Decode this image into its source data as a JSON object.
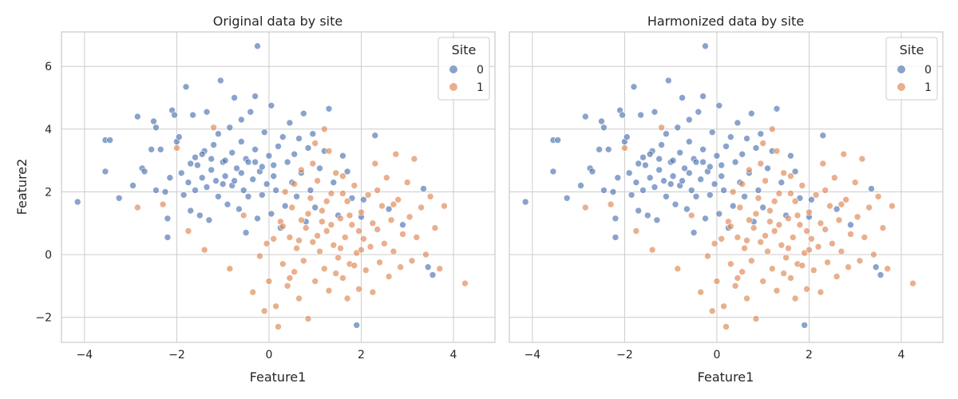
{
  "chart_data": [
    {
      "type": "scatter",
      "title": "Original data by site",
      "xlabel": "Feature1",
      "ylabel": "Feature2",
      "xlim": [
        -4.5,
        4.9
      ],
      "ylim": [
        -2.8,
        7.1
      ],
      "xticks": [
        -4,
        -2,
        0,
        2,
        4
      ],
      "yticks": [
        -2,
        0,
        2,
        4,
        6
      ],
      "xtick_labels": [
        "−4",
        "−2",
        "0",
        "2",
        "4"
      ],
      "ytick_labels": [
        "−2",
        "0",
        "2",
        "4",
        "6"
      ],
      "grid": true,
      "legend": {
        "title": "Site",
        "position": "top-right",
        "entries": [
          "0",
          "1"
        ]
      },
      "series": [
        {
          "name": "0",
          "color": "#4c72b0",
          "points": [
            [
              -4.15,
              1.68
            ],
            [
              -3.55,
              3.65
            ],
            [
              -3.45,
              3.65
            ],
            [
              -3.55,
              2.65
            ],
            [
              -3.25,
              1.8
            ],
            [
              -2.95,
              2.2
            ],
            [
              -2.85,
              4.4
            ],
            [
              -2.75,
              2.75
            ],
            [
              -2.7,
              2.65
            ],
            [
              -2.55,
              3.35
            ],
            [
              -2.5,
              4.25
            ],
            [
              -2.45,
              4.05
            ],
            [
              -2.45,
              2.05
            ],
            [
              -2.35,
              3.35
            ],
            [
              -2.25,
              2.0
            ],
            [
              -2.2,
              1.15
            ],
            [
              -2.2,
              0.55
            ],
            [
              -2.15,
              2.45
            ],
            [
              -2.1,
              4.6
            ],
            [
              -2.05,
              4.45
            ],
            [
              -2.0,
              3.6
            ],
            [
              -1.95,
              3.75
            ],
            [
              -1.9,
              2.6
            ],
            [
              -1.85,
              1.9
            ],
            [
              -1.8,
              5.35
            ],
            [
              -1.75,
              2.3
            ],
            [
              -1.7,
              1.4
            ],
            [
              -1.65,
              4.45
            ],
            [
              -1.6,
              2.05
            ],
            [
              -1.6,
              3.1
            ],
            [
              -1.55,
              2.85
            ],
            [
              -1.5,
              1.25
            ],
            [
              -1.45,
              2.45
            ],
            [
              -1.4,
              3.3
            ],
            [
              -1.35,
              2.15
            ],
            [
              -1.35,
              4.55
            ],
            [
              -1.3,
              1.1
            ],
            [
              -1.25,
              2.7
            ],
            [
              -1.2,
              3.5
            ],
            [
              -1.15,
              2.35
            ],
            [
              -1.1,
              1.85
            ],
            [
              -1.1,
              3.85
            ],
            [
              -1.05,
              5.55
            ],
            [
              -1.0,
              2.95
            ],
            [
              -0.95,
              2.5
            ],
            [
              -0.9,
              1.6
            ],
            [
              -0.85,
              4.05
            ],
            [
              -0.8,
              3.25
            ],
            [
              -0.8,
              2.2
            ],
            [
              -0.75,
              5.0
            ],
            [
              -0.7,
              2.75
            ],
            [
              -0.65,
              1.45
            ],
            [
              -0.6,
              3.6
            ],
            [
              -0.6,
              4.3
            ],
            [
              -0.55,
              2.05
            ],
            [
              -0.5,
              0.7
            ],
            [
              -0.5,
              3.05
            ],
            [
              -0.45,
              1.85
            ],
            [
              -0.4,
              4.55
            ],
            [
              -0.35,
              2.4
            ],
            [
              -0.3,
              5.05
            ],
            [
              -0.3,
              3.35
            ],
            [
              -0.25,
              1.15
            ],
            [
              -0.25,
              6.65
            ],
            [
              -0.2,
              2.65
            ],
            [
              -0.15,
              1.9
            ],
            [
              -0.1,
              3.9
            ],
            [
              -0.05,
              2.25
            ],
            [
              0.0,
              3.15
            ],
            [
              0.05,
              4.75
            ],
            [
              0.05,
              1.3
            ],
            [
              0.1,
              2.85
            ],
            [
              0.15,
              2.05
            ],
            [
              0.2,
              3.45
            ],
            [
              0.25,
              0.85
            ],
            [
              0.3,
              3.75
            ],
            [
              0.35,
              1.55
            ],
            [
              0.4,
              2.95
            ],
            [
              0.45,
              4.2
            ],
            [
              0.5,
              2.3
            ],
            [
              0.55,
              3.2
            ],
            [
              0.6,
              1.85
            ],
            [
              0.65,
              3.7
            ],
            [
              0.7,
              2.6
            ],
            [
              0.75,
              4.5
            ],
            [
              0.8,
              1.05
            ],
            [
              0.85,
              3.4
            ],
            [
              0.9,
              2.05
            ],
            [
              0.95,
              3.85
            ],
            [
              1.0,
              1.5
            ],
            [
              1.1,
              2.75
            ],
            [
              1.2,
              3.3
            ],
            [
              1.3,
              4.65
            ],
            [
              1.4,
              2.3
            ],
            [
              1.5,
              1.25
            ],
            [
              1.6,
              3.15
            ],
            [
              1.7,
              2.65
            ],
            [
              1.8,
              1.8
            ],
            [
              1.9,
              -2.25
            ],
            [
              2.0,
              1.2
            ],
            [
              2.05,
              1.75
            ],
            [
              2.3,
              3.8
            ],
            [
              2.6,
              1.45
            ],
            [
              2.9,
              0.95
            ],
            [
              3.35,
              2.1
            ],
            [
              3.45,
              -0.4
            ],
            [
              3.55,
              -0.65
            ],
            [
              -1.7,
              2.9
            ],
            [
              -1.45,
              3.2
            ],
            [
              -0.95,
              3.0
            ],
            [
              -0.75,
              2.35
            ],
            [
              -0.45,
              2.95
            ],
            [
              -0.15,
              2.8
            ],
            [
              0.1,
              2.5
            ],
            [
              -1.25,
              3.05
            ],
            [
              -0.6,
              2.6
            ],
            [
              -1.0,
              2.25
            ],
            [
              -0.3,
              2.95
            ]
          ]
        },
        {
          "name": "1",
          "color": "#dd8452",
          "points": [
            [
              -2.85,
              1.5
            ],
            [
              -2.3,
              1.6
            ],
            [
              -2.0,
              3.4
            ],
            [
              -1.75,
              0.75
            ],
            [
              -1.4,
              0.15
            ],
            [
              -1.2,
              4.05
            ],
            [
              -0.85,
              -0.45
            ],
            [
              -0.55,
              1.25
            ],
            [
              -0.35,
              -1.2
            ],
            [
              -0.2,
              -0.05
            ],
            [
              -0.1,
              -1.8
            ],
            [
              0.0,
              -0.85
            ],
            [
              0.1,
              0.5
            ],
            [
              0.15,
              -1.65
            ],
            [
              0.2,
              -2.3
            ],
            [
              0.25,
              1.05
            ],
            [
              0.3,
              -0.3
            ],
            [
              0.35,
              2.0
            ],
            [
              0.4,
              -1.0
            ],
            [
              0.45,
              0.55
            ],
            [
              0.5,
              1.5
            ],
            [
              0.55,
              -0.55
            ],
            [
              0.6,
              0.2
            ],
            [
              0.65,
              -1.4
            ],
            [
              0.7,
              1.1
            ],
            [
              0.75,
              -0.2
            ],
            [
              0.8,
              0.85
            ],
            [
              0.85,
              -2.05
            ],
            [
              0.9,
              1.8
            ],
            [
              0.95,
              0.4
            ],
            [
              1.0,
              -0.85
            ],
            [
              1.05,
              2.35
            ],
            [
              1.1,
              0.1
            ],
            [
              1.15,
              1.4
            ],
            [
              1.2,
              -0.45
            ],
            [
              1.25,
              0.75
            ],
            [
              1.3,
              -1.15
            ],
            [
              1.35,
              1.95
            ],
            [
              1.4,
              0.3
            ],
            [
              1.45,
              2.6
            ],
            [
              1.5,
              -0.1
            ],
            [
              1.55,
              1.15
            ],
            [
              1.6,
              -0.75
            ],
            [
              1.65,
              0.55
            ],
            [
              1.7,
              1.7
            ],
            [
              1.75,
              -0.3
            ],
            [
              1.8,
              0.95
            ],
            [
              1.85,
              2.2
            ],
            [
              1.9,
              0.05
            ],
            [
              1.95,
              -1.1
            ],
            [
              2.0,
              1.35
            ],
            [
              2.05,
              0.5
            ],
            [
              2.1,
              -0.5
            ],
            [
              2.15,
              1.9
            ],
            [
              2.2,
              0.25
            ],
            [
              2.25,
              -1.2
            ],
            [
              2.3,
              2.9
            ],
            [
              2.35,
              0.8
            ],
            [
              2.4,
              -0.25
            ],
            [
              2.45,
              1.55
            ],
            [
              2.5,
              0.35
            ],
            [
              2.55,
              2.45
            ],
            [
              2.6,
              -0.7
            ],
            [
              2.65,
              1.1
            ],
            [
              2.7,
              0.1
            ],
            [
              2.75,
              3.2
            ],
            [
              2.8,
              1.75
            ],
            [
              2.85,
              -0.4
            ],
            [
              2.9,
              0.65
            ],
            [
              3.0,
              2.3
            ],
            [
              3.05,
              1.2
            ],
            [
              3.1,
              -0.2
            ],
            [
              3.15,
              3.05
            ],
            [
              3.2,
              0.55
            ],
            [
              3.3,
              1.5
            ],
            [
              3.4,
              0.0
            ],
            [
              3.5,
              1.85
            ],
            [
              3.6,
              0.85
            ],
            [
              3.7,
              -0.45
            ],
            [
              3.8,
              1.55
            ],
            [
              4.25,
              -0.92
            ],
            [
              0.95,
              2.9
            ],
            [
              1.3,
              3.3
            ],
            [
              1.6,
              2.5
            ],
            [
              0.7,
              2.7
            ],
            [
              1.15,
              1.05
            ],
            [
              1.55,
              0.2
            ],
            [
              1.85,
              -0.35
            ],
            [
              2.25,
              1.0
            ],
            [
              1.45,
              -0.6
            ],
            [
              1.05,
              0.6
            ],
            [
              0.85,
              1.3
            ],
            [
              1.75,
              1.25
            ],
            [
              2.0,
              0.15
            ],
            [
              1.25,
              1.7
            ],
            [
              0.65,
              0.45
            ],
            [
              1.6,
              1.95
            ],
            [
              1.95,
              0.75
            ],
            [
              1.35,
              0.95
            ],
            [
              2.35,
              2.05
            ],
            [
              2.7,
              1.6
            ],
            [
              0.3,
              0.9
            ],
            [
              0.55,
              2.25
            ],
            [
              1.0,
              3.55
            ],
            [
              1.2,
              4.0
            ],
            [
              -0.05,
              0.35
            ],
            [
              0.45,
              -0.75
            ],
            [
              1.7,
              -1.4
            ]
          ]
        }
      ]
    },
    {
      "type": "scatter",
      "title": "Harmonized data by site",
      "xlabel": "Feature1",
      "ylabel": "",
      "xlim": [
        -4.5,
        4.9
      ],
      "ylim": [
        -2.8,
        7.1
      ],
      "xticks": [
        -4,
        -2,
        0,
        2,
        4
      ],
      "yticks": [
        -2,
        0,
        2,
        4,
        6
      ],
      "xtick_labels": [
        "−4",
        "−2",
        "0",
        "2",
        "4"
      ],
      "ytick_labels": [],
      "grid": true,
      "legend": {
        "title": "Site",
        "position": "top-right",
        "entries": [
          "0",
          "1"
        ]
      },
      "series": "same-as-original"
    }
  ]
}
